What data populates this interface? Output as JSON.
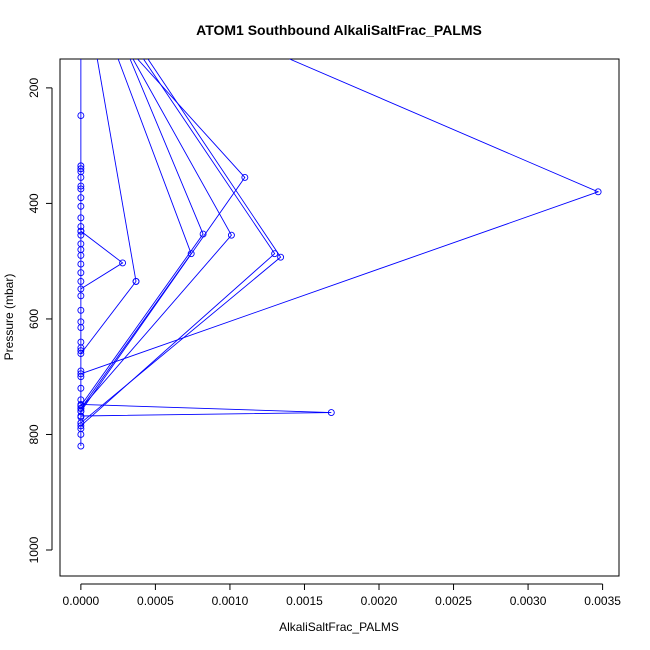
{
  "chart_data": {
    "type": "line",
    "title": "ATOM1 Southbound AlkaliSaltFrac_PALMS",
    "xlabel": "AlkaliSaltFrac_PALMS",
    "ylabel": "Pressure (mbar)",
    "xlim": [
      -0.00014,
      0.00361
    ],
    "ylim": [
      1045,
      150
    ],
    "y_reversed": true,
    "grid": false,
    "x_ticks": [
      0,
      0.0005,
      0.001,
      0.0015,
      0.002,
      0.0025,
      0.003,
      0.0035
    ],
    "x_tick_labels": [
      "0.0000",
      "0.0005",
      "0.0010",
      "0.0015",
      "0.0020",
      "0.0025",
      "0.0030",
      "0.0035"
    ],
    "y_ticks": [
      200,
      400,
      600,
      800,
      1000
    ],
    "y_tick_labels": [
      "200",
      "400",
      "600",
      "800",
      "1000"
    ],
    "colors": {
      "series": "#0000ff",
      "axes": "#000000",
      "background": "#ffffff"
    },
    "series": [
      {
        "points": [
          [
            0.0,
            820
          ],
          [
            0.0,
            800
          ],
          [
            0.0,
            790
          ],
          [
            0.0,
            780
          ],
          [
            0.0,
            770
          ],
          [
            0.0,
            760
          ],
          [
            0.0,
            750
          ],
          [
            0.0,
            740
          ],
          [
            0.0,
            720
          ],
          [
            0.0,
            700
          ],
          [
            0.0,
            690
          ],
          [
            0.0,
            655
          ],
          [
            0.0,
            650
          ],
          [
            0.0,
            640
          ],
          [
            0.0,
            615
          ],
          [
            0.0,
            605
          ],
          [
            0.0,
            585
          ],
          [
            0.0,
            560
          ],
          [
            0.0,
            535
          ],
          [
            0.0,
            520
          ],
          [
            0.0,
            505
          ],
          [
            0.0,
            490
          ],
          [
            0.0,
            480
          ],
          [
            0.0,
            470
          ],
          [
            0.0,
            455
          ],
          [
            0.0,
            448
          ],
          [
            0.0,
            440
          ],
          [
            0.0,
            425
          ],
          [
            0.0,
            405
          ],
          [
            0.0,
            390
          ],
          [
            0.0,
            375
          ],
          [
            0.0,
            370
          ],
          [
            0.0,
            355
          ],
          [
            0.0,
            345
          ],
          [
            0.0,
            340
          ],
          [
            0.0,
            335
          ],
          [
            0.0,
            248
          ],
          [
            0.0,
            150
          ]
        ]
      },
      {
        "points": [
          [
            0.0,
            448
          ],
          [
            0.00028,
            503
          ],
          [
            0.0,
            548
          ]
        ]
      },
      {
        "points": [
          [
            0.00037,
            535
          ],
          [
            0.0,
            660
          ]
        ]
      },
      {
        "points": [
          [
            0.00011,
            150
          ],
          [
            0.00037,
            535
          ]
        ]
      },
      {
        "points": [
          [
            0.00025,
            150
          ],
          [
            0.00074,
            487
          ],
          [
            0.0,
            755
          ]
        ]
      },
      {
        "points": [
          [
            0.00033,
            150
          ],
          [
            0.00082,
            453
          ],
          [
            0.0,
            750
          ]
        ]
      },
      {
        "points": [
          [
            0.00035,
            150
          ],
          [
            0.00101,
            455
          ],
          [
            0.0,
            755
          ]
        ]
      },
      {
        "points": [
          [
            0.00038,
            150
          ],
          [
            0.0011,
            355
          ],
          [
            0.0,
            760
          ]
        ]
      },
      {
        "points": [
          [
            0.00042,
            150
          ],
          [
            0.0013,
            487
          ],
          [
            0.0,
            785
          ]
        ]
      },
      {
        "points": [
          [
            0.00045,
            150
          ],
          [
            0.00134,
            493
          ],
          [
            0.0,
            780
          ]
        ]
      },
      {
        "points": [
          [
            0.0014,
            150
          ],
          [
            0.00347,
            380
          ],
          [
            0.0,
            695
          ]
        ]
      },
      {
        "points": [
          [
            0.0,
            748
          ],
          [
            0.00168,
            762
          ],
          [
            0.0,
            768
          ]
        ]
      }
    ]
  }
}
